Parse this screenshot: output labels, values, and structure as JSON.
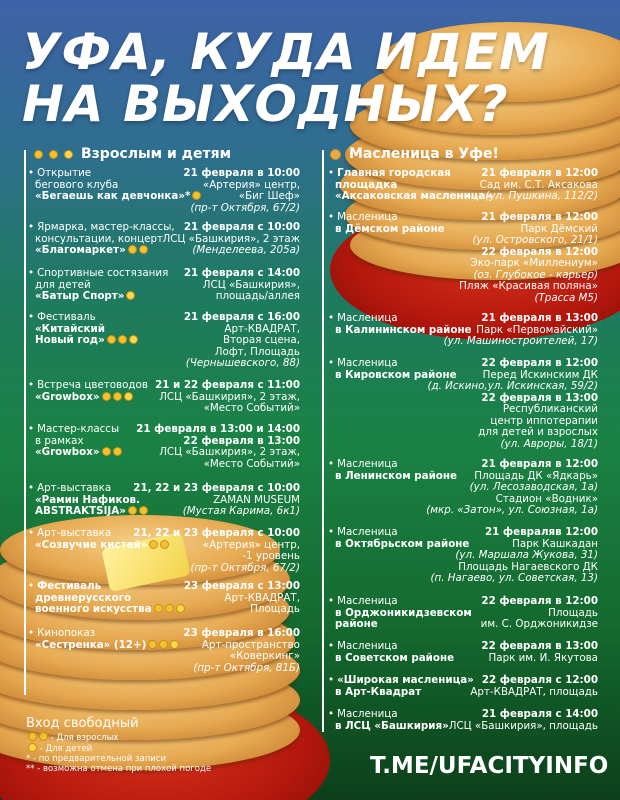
{
  "title": {
    "line1": "УФА, КУДА ИДЕМ",
    "line2": "НА ВЫХОДНЫХ?"
  },
  "left_section": {
    "title": "Взрослым и детям",
    "icons": [
      "adult",
      "adult",
      "child"
    ],
    "events": [
      {
        "left": [
          {
            "t": "Открытие",
            "b": false
          },
          {
            "t": "бегового клуба",
            "b": false
          },
          {
            "t": "«Бегаешь как девчонка»*",
            "b": true,
            "icons": [
              "adult"
            ]
          }
        ],
        "right": [
          {
            "t": "21 февраля в 10:00",
            "s": "b"
          },
          {
            "t": "«Артерия» центр,",
            "s": "n"
          },
          {
            "t": "«Биг Шеф»",
            "s": "n"
          },
          {
            "t": "(пр-т Октября, 67/2)",
            "s": "i"
          }
        ]
      },
      {
        "left": [
          {
            "t": "Ярмарка, мастер-классы,",
            "b": false
          },
          {
            "t": "консультации, концерт",
            "b": false
          },
          {
            "t": "«Благомаркет»",
            "b": true,
            "icons": [
              "adult",
              "adult"
            ]
          }
        ],
        "right": [
          {
            "t": "21 февраля с 10:00",
            "s": "b"
          },
          {
            "t": "ЛСЦ «Башкирия», 2 этаж",
            "s": "n"
          },
          {
            "t": "(Менделеева, 205а)",
            "s": "i"
          }
        ]
      },
      {
        "left": [
          {
            "t": "Спортивные состязания",
            "b": false
          },
          {
            "t": "для детей",
            "b": false
          },
          {
            "t": "«Батыр Спорт»",
            "b": true,
            "icons": [
              "child"
            ]
          }
        ],
        "right": [
          {
            "t": "21 февраля с 14:00",
            "s": "b"
          },
          {
            "t": "ЛСЦ «Башкирия»,",
            "s": "n"
          },
          {
            "t": "площадь/аллея",
            "s": "n"
          }
        ]
      },
      {
        "left": [
          {
            "t": "Фестиваль",
            "b": false
          },
          {
            "t": "«Китайский",
            "b": true
          },
          {
            "t": "Новый год»",
            "b": true,
            "icons": [
              "adult",
              "adult",
              "child"
            ]
          }
        ],
        "right": [
          {
            "t": "21 февраля с 16:00",
            "s": "b"
          },
          {
            "t": "Арт-КВАДРАТ,",
            "s": "n"
          },
          {
            "t": "Вторая сцена,",
            "s": "n"
          },
          {
            "t": "Лофт, Площадь",
            "s": "n"
          },
          {
            "t": "(Чернышевского, 88)",
            "s": "i"
          }
        ]
      },
      {
        "left": [
          {
            "t": "Встреча цветоводов",
            "b": false
          },
          {
            "t": "«Growbox»",
            "b": true,
            "icons": [
              "adult",
              "adult",
              "child"
            ]
          }
        ],
        "right": [
          {
            "t": "21 и 22 февраля с 11:00",
            "s": "b"
          },
          {
            "t": "ЛСЦ «Башкирия», 2 этаж,",
            "s": "n"
          },
          {
            "t": "«Место Событий»",
            "s": "n"
          }
        ]
      },
      {
        "left": [
          {
            "t": "Мастер-классы",
            "b": false
          },
          {
            "t": "в рамках",
            "b": false
          },
          {
            "t": "«Growbox»",
            "b": true,
            "icons": [
              "adult",
              "adult"
            ]
          }
        ],
        "right": [
          {
            "t": "21 февраля в 13:00 и 14:00",
            "s": "b"
          },
          {
            "t": "22 февраля в 13:00",
            "s": "b"
          },
          {
            "t": "ЛСЦ «Башкирия», 2 этаж,",
            "s": "n"
          },
          {
            "t": "«Место Событий»",
            "s": "n"
          }
        ]
      },
      {
        "left": [
          {
            "t": "Арт-выставка",
            "b": false
          },
          {
            "t": "«Рамин Нафиков.",
            "b": true
          },
          {
            "t": "ABSTRAKTSIJA»",
            "b": true,
            "icons": [
              "adult",
              "adult"
            ]
          }
        ],
        "right": [
          {
            "t": "21, 22 и 23 февраля с 10:00",
            "s": "b"
          },
          {
            "t": "ZAMAN MUSEUM",
            "s": "n"
          },
          {
            "t": "(Мустая Карима, 6к1)",
            "s": "i"
          }
        ]
      },
      {
        "left": [
          {
            "t": "Арт-выставка",
            "b": false
          },
          {
            "t": "«Созвучие кистей»",
            "b": true,
            "icons": [
              "adult",
              "adult"
            ]
          }
        ],
        "right": [
          {
            "t": "21, 22 и 23 февраля с 10:00",
            "s": "b"
          },
          {
            "t": "«Артерия» центр,",
            "s": "n"
          },
          {
            "t": "-1 уровень",
            "s": "n"
          },
          {
            "t": "(пр-т Октября, 67/2)",
            "s": "i"
          }
        ]
      },
      {
        "left": [
          {
            "t": "Фестиваль",
            "b": true
          },
          {
            "t": "древнерусского",
            "b": true
          },
          {
            "t": "военного искусства",
            "b": true,
            "icons": [
              "adult",
              "adult",
              "child"
            ]
          }
        ],
        "right": [
          {
            "t": "23 февраля с 13:00",
            "s": "b"
          },
          {
            "t": "Арт-КВАДРАТ,",
            "s": "n"
          },
          {
            "t": "Площадь",
            "s": "n"
          }
        ]
      },
      {
        "left": [
          {
            "t": "Кинопоказ",
            "b": false
          },
          {
            "t": "«Сестренка» (12+)",
            "b": true,
            "icons": [
              "adult",
              "adult",
              "child"
            ]
          }
        ],
        "right": [
          {
            "t": "23 февраля в 16:00",
            "s": "b"
          },
          {
            "t": "Арт-пространство",
            "s": "n"
          },
          {
            "t": "«Коверкинг»",
            "s": "n"
          },
          {
            "t": "(пр-т Октября, 81Б)",
            "s": "i"
          }
        ]
      }
    ]
  },
  "right_section": {
    "title": "Масленица в Уфе!",
    "icons": [
      "pancake"
    ],
    "events": [
      {
        "left": [
          {
            "t": "Главная городская",
            "b": true
          },
          {
            "t": "площадка",
            "b": true
          },
          {
            "t": "«Аксаковская масленица»",
            "b": true
          }
        ],
        "right": [
          {
            "t": "21 февраля в 12:00",
            "s": "b"
          },
          {
            "t": "Сад им. С.Т. Аксакова",
            "s": "n"
          },
          {
            "t": "(ул. Пушкина, 112/2)",
            "s": "i"
          }
        ]
      },
      {
        "left": [
          {
            "t": "Масленица",
            "b": false
          },
          {
            "t": "в Дёмском районе",
            "b": true
          }
        ],
        "right": [
          {
            "t": "21 февраля в 12:00",
            "s": "b"
          },
          {
            "t": "Парк Дёмский",
            "s": "n"
          },
          {
            "t": "(ул. Островского, 21/1)",
            "s": "i"
          },
          {
            "t": "22 февраля в 12:00",
            "s": "b"
          },
          {
            "t": "Эко-парк «Миллениум»",
            "s": "n"
          },
          {
            "t": "(оз. Глубокое - карьер)",
            "s": "i"
          },
          {
            "t": "Пляж «Красивая поляна»",
            "s": "n"
          },
          {
            "t": "(Трасса М5)",
            "s": "i"
          }
        ]
      },
      {
        "left": [
          {
            "t": "Масленица",
            "b": false
          },
          {
            "t": "в Калининском районе",
            "b": true
          }
        ],
        "right": [
          {
            "t": "21 февраля в 13:00",
            "s": "b"
          },
          {
            "t": "Парк «Первомайский»",
            "s": "n"
          },
          {
            "t": "(ул. Машиностроителей, 17)",
            "s": "i"
          }
        ]
      },
      {
        "left": [
          {
            "t": "Масленица",
            "b": false
          },
          {
            "t": "в Кировском районе",
            "b": true
          }
        ],
        "right": [
          {
            "t": "22 февраля в 12:00",
            "s": "b"
          },
          {
            "t": "Перед Искинским ДК",
            "s": "n"
          },
          {
            "t": "(д. Искино,ул. Искинская, 59/2)",
            "s": "i"
          },
          {
            "t": "22 февраля в 13:00",
            "s": "b"
          },
          {
            "t": "Республиканский",
            "s": "n"
          },
          {
            "t": "центр иппотерапии",
            "s": "n"
          },
          {
            "t": "для детей и взрослых",
            "s": "n"
          },
          {
            "t": "(ул. Авроры, 18/1)",
            "s": "i"
          }
        ]
      },
      {
        "left": [
          {
            "t": "Масленица",
            "b": false
          },
          {
            "t": "в Ленинском районе",
            "b": true
          }
        ],
        "right": [
          {
            "t": "21 февраля в 12:00",
            "s": "b"
          },
          {
            "t": "Площадь ДК «Ядкарь»",
            "s": "n"
          },
          {
            "t": "(ул. Лесозаводская, 1а)",
            "s": "i"
          },
          {
            "t": "Стадион «Водник»",
            "s": "n"
          },
          {
            "t": "(мкр. «Затон», ул. Союзная, 1а)",
            "s": "i"
          }
        ]
      },
      {
        "left": [
          {
            "t": "Масленица",
            "b": false
          },
          {
            "t": "в Октябрьском районе",
            "b": true
          }
        ],
        "right": [
          {
            "t": "21 февраляв 12:00",
            "s": "b"
          },
          {
            "t": "Парк Кашкадан",
            "s": "n"
          },
          {
            "t": "(ул. Маршала Жукова, 31)",
            "s": "i"
          },
          {
            "t": "Площадь Нагаевского ДК",
            "s": "n"
          },
          {
            "t": "(п. Нагаево, ул. Советская, 13)",
            "s": "i"
          }
        ]
      },
      {
        "left": [
          {
            "t": "Масленица",
            "b": false
          },
          {
            "t": "в Орджоникидзевском",
            "b": true
          },
          {
            "t": "районе",
            "b": true
          }
        ],
        "right": [
          {
            "t": "22 февраля в 12:00",
            "s": "b"
          },
          {
            "t": "Площадь",
            "s": "n"
          },
          {
            "t": "им. С. Орджоникидзе",
            "s": "n"
          }
        ]
      },
      {
        "left": [
          {
            "t": "Масленица",
            "b": false
          },
          {
            "t": "в Советском районе",
            "b": true
          }
        ],
        "right": [
          {
            "t": "22 февраля в 13:00",
            "s": "b"
          },
          {
            "t": "Парк им. И. Якутова",
            "s": "n"
          }
        ]
      },
      {
        "left": [
          {
            "t": "«Широкая масленица»",
            "b": true
          },
          {
            "t": "в Арт-Квадрат",
            "b": true
          }
        ],
        "right": [
          {
            "t": "22 февраля с 12:00",
            "s": "b"
          },
          {
            "t": "Арт-КВАДРАТ, площадь",
            "s": "n"
          }
        ]
      },
      {
        "left": [
          {
            "t": "Масленица",
            "b": false
          },
          {
            "t": "в ЛСЦ «Башкирия»",
            "b": true
          }
        ],
        "right": [
          {
            "t": "21 февраля с 14:00",
            "s": "b"
          },
          {
            "t": "ЛСЦ «Башкирия», площадь",
            "s": "n"
          }
        ]
      }
    ]
  },
  "footer": {
    "heading": "Вход свободный",
    "adults": "- Для взрослых",
    "children": "- Для детей",
    "note1": "* - по предварительной записи",
    "note2": "** - возможна отмена при плохой погоде"
  },
  "link": "T.ME/UFACITYINFO",
  "colors": {
    "bg_top": "#3f62a8",
    "bg_mid": "#1b8245",
    "bg_bottom": "#0c3f1a",
    "plate": "#b3170d",
    "text": "#ffffff"
  }
}
